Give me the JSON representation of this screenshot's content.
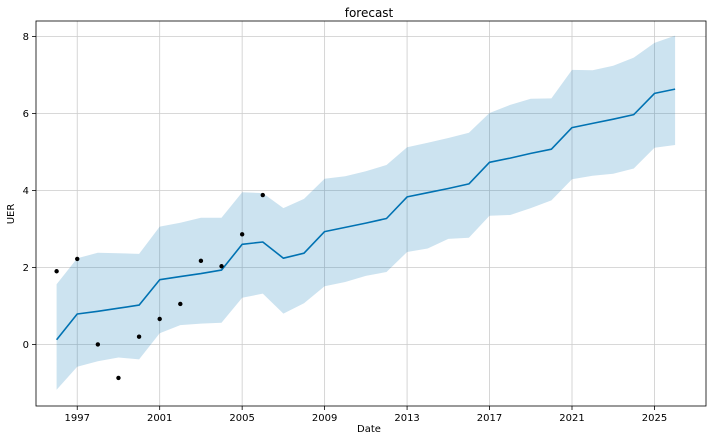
{
  "chart_data": {
    "type": "line",
    "title": "forecast",
    "xlabel": "Date",
    "ylabel": "UER",
    "xlim": [
      1995.0,
      2027.5
    ],
    "ylim": [
      -1.6,
      8.4
    ],
    "grid": true,
    "x_ticks": [
      1997,
      2001,
      2005,
      2009,
      2013,
      2017,
      2021,
      2025
    ],
    "x_tick_labels": [
      "1997",
      "2001",
      "2005",
      "2009",
      "2013",
      "2017",
      "2021",
      "2025"
    ],
    "y_ticks": [
      0,
      2,
      4,
      6,
      8
    ],
    "y_tick_labels": [
      "0",
      "2",
      "4",
      "6",
      "8"
    ],
    "colors": {
      "forecast_line": "#0072b2",
      "interval_fill": "#0072b2",
      "observed_points": "#000000",
      "grid": "#cccccc"
    },
    "series": [
      {
        "role": "observed",
        "x": [
          1996,
          1997,
          1998,
          1999,
          2000,
          2001,
          2002,
          2003,
          2004,
          2005,
          2006
        ],
        "y": [
          1.9,
          2.22,
          0.0,
          -0.87,
          0.2,
          0.66,
          1.05,
          2.17,
          2.03,
          2.86,
          3.88
        ]
      },
      {
        "role": "forecast",
        "x": [
          1996,
          1997,
          1998,
          1999,
          2000,
          2001,
          2002,
          2003,
          2004,
          2005,
          2006,
          2007,
          2008,
          2009,
          2010,
          2011,
          2012,
          2013,
          2014,
          2015,
          2016,
          2017,
          2018,
          2019,
          2020,
          2021,
          2022,
          2023,
          2024,
          2025,
          2026
        ],
        "y": [
          0.12,
          0.79,
          0.86,
          0.94,
          1.02,
          1.68,
          1.76,
          1.84,
          1.93,
          2.6,
          2.66,
          2.24,
          2.37,
          2.93,
          3.04,
          3.15,
          3.27,
          3.83,
          3.94,
          4.05,
          4.17,
          4.73,
          4.84,
          4.96,
          5.07,
          5.63,
          5.74,
          5.85,
          5.97,
          6.52,
          6.63
        ]
      },
      {
        "role": "interval_upper",
        "x": [
          1996,
          1997,
          1998,
          1999,
          2000,
          2001,
          2002,
          2003,
          2004,
          2005,
          2006,
          2007,
          2008,
          2009,
          2010,
          2011,
          2012,
          2013,
          2014,
          2015,
          2016,
          2017,
          2018,
          2019,
          2020,
          2021,
          2022,
          2023,
          2024,
          2025,
          2026
        ],
        "y": [
          1.56,
          2.24,
          2.38,
          2.37,
          2.35,
          3.06,
          3.16,
          3.29,
          3.29,
          3.95,
          3.93,
          3.54,
          3.78,
          4.3,
          4.37,
          4.5,
          4.66,
          5.12,
          5.24,
          5.36,
          5.5,
          6.01,
          6.22,
          6.38,
          6.39,
          7.13,
          7.12,
          7.24,
          7.45,
          7.83,
          8.02
        ]
      },
      {
        "role": "interval_lower",
        "x": [
          1996,
          1997,
          1998,
          1999,
          2000,
          2001,
          2002,
          2003,
          2004,
          2005,
          2006,
          2007,
          2008,
          2009,
          2010,
          2011,
          2012,
          2013,
          2014,
          2015,
          2016,
          2017,
          2018,
          2019,
          2020,
          2021,
          2022,
          2023,
          2024,
          2025,
          2026
        ],
        "y": [
          -1.18,
          -0.58,
          -0.44,
          -0.34,
          -0.39,
          0.29,
          0.5,
          0.54,
          0.56,
          1.21,
          1.32,
          0.8,
          1.07,
          1.51,
          1.62,
          1.78,
          1.88,
          2.4,
          2.49,
          2.74,
          2.77,
          3.34,
          3.36,
          3.54,
          3.74,
          4.29,
          4.38,
          4.43,
          4.57,
          5.11,
          5.18
        ]
      }
    ]
  }
}
